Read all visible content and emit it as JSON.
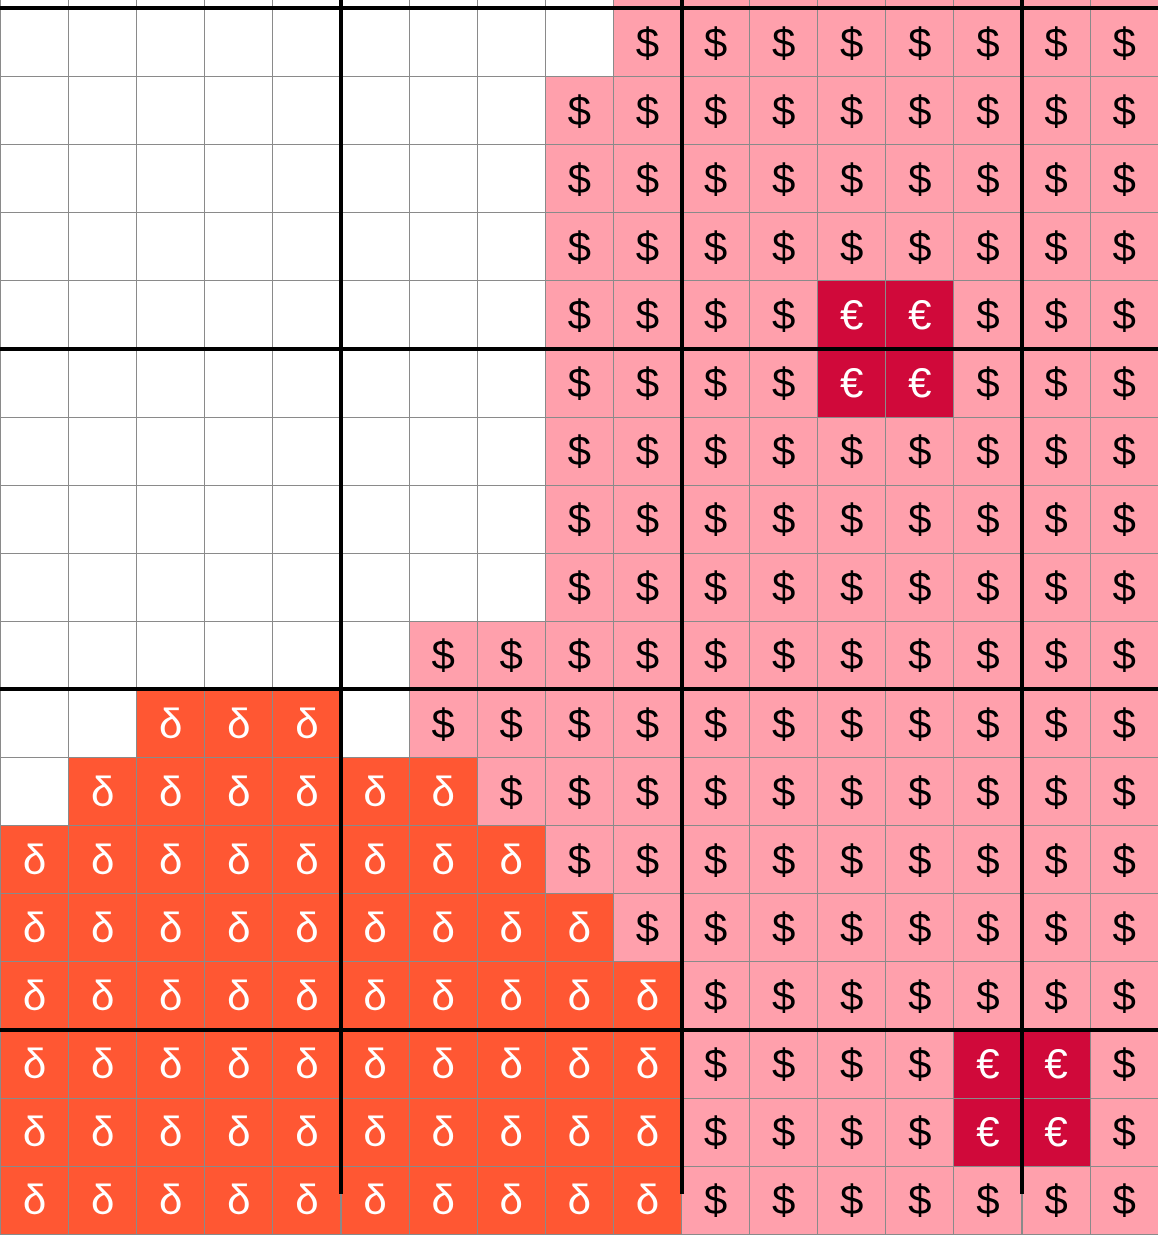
{
  "pattern": {
    "legend": {
      ".": {
        "symbol": "",
        "fill": "#FFFFFF",
        "text": "#000000"
      },
      "$": {
        "symbol": "$",
        "fill": "#FFA0AC",
        "text": "#000000"
      },
      "€": {
        "symbol": "€",
        "fill": "#D0093A",
        "text": "#FFFFFF"
      },
      "δ": {
        "symbol": "δ",
        "fill": "#FF5733",
        "text": "#FFFFFF"
      }
    },
    "major_grid_every": 5,
    "rows": [
      ".........$$$$$$$$",
      ".........$$$$$$$$",
      "........$$$$$$$$$",
      "........$$$$$$$$$",
      "........$$$$$$$$$",
      "........$$$$€€$$$",
      "........$$$$€€$$$",
      "........$$$$$$$$$",
      "........$$$$$$$$$",
      "........$$$$$$$$$",
      "......$$$$$$$$$$$",
      "..δδδ.$$$$$$$$$$$",
      ".δδδδδδ$$$$$$$$$$",
      "δδδδδδδδ$$$$$$$$$",
      "δδδδδδδδδ$$$$$$$$",
      "δδδδδδδδδδ$$$$$$$",
      "δδδδδδδδδδ$$$$€€$",
      "δδδδδδδδδδ$$$$€€$",
      "δδδδδδδδδδ$$$$$$$"
    ]
  }
}
